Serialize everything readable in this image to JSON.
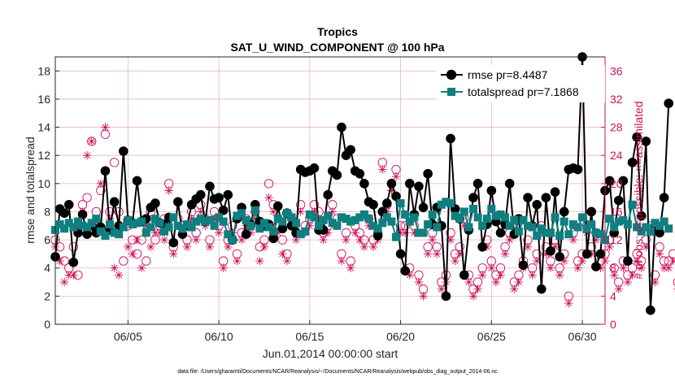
{
  "chart_data": {
    "type": "line",
    "title": "Tropics",
    "subtitle": "SAT_U_WIND_COMPONENT @ 100 hPa",
    "xlabel": "Jun.01,2014 00:00:00 start",
    "ylabel_left": "rmse and totalspread",
    "ylabel_right": "# of obs: o=possible; ×=assimilated",
    "footnote": "data file: /Users/gharamti/Documents/NCAR/Reanalysis/~/Documents/NCAR/Reanalysis/webpub/obs_diag_output_2014-06.nc",
    "x_start_day": 1.0,
    "x_step_days": 0.25,
    "xlim": [
      1.0,
      31.25
    ],
    "xticks": [
      5,
      10,
      15,
      20,
      25,
      30
    ],
    "xtick_labels": [
      "06/05",
      "06/10",
      "06/15",
      "06/20",
      "06/25",
      "06/30"
    ],
    "ylim_left": [
      0,
      19
    ],
    "yticks_left": [
      0,
      2,
      4,
      6,
      8,
      10,
      12,
      14,
      16,
      18
    ],
    "ylim_right": [
      0,
      38
    ],
    "yticks_right": [
      0,
      4,
      8,
      12,
      16,
      20,
      24,
      28,
      32,
      36
    ],
    "legend_position": "top-right",
    "series": [
      {
        "name": "rmse",
        "legend_label": "rmse pr=8.4487",
        "color": "#000000",
        "marker": "circle",
        "axis": "left",
        "values": [
          4.8,
          8.2,
          7.9,
          8.5,
          4.4,
          6.5,
          7.8,
          6.4,
          7.0,
          6.5,
          6.9,
          10.9,
          6.7,
          8.7,
          7.0,
          12.3,
          7.4,
          7.2,
          10.2,
          7.3,
          7.5,
          8.3,
          8.6,
          7.2,
          7.1,
          7.6,
          5.8,
          8.7,
          6.4,
          7.0,
          8.5,
          8.9,
          9.2,
          7.3,
          9.8,
          8.9,
          9.0,
          8.1,
          9.2,
          6.0,
          7.5,
          8.3,
          6.4,
          7.1,
          8.5,
          7.3,
          7.0,
          7.1,
          6.1,
          8.4,
          6.8,
          7.9,
          7.0,
          6.5,
          11.0,
          10.8,
          10.9,
          11.1,
          6.7,
          6.7,
          9.2,
          10.9,
          10.6,
          14.0,
          12.0,
          12.4,
          10.9,
          10.7,
          10.0,
          8.7,
          8.5,
          6.3,
          8.0,
          8.6,
          10.0,
          9.1,
          5.0,
          3.8,
          10.0,
          7.8,
          9.8,
          8.3,
          10.7,
          7.1,
          8.3,
          7.0,
          2.0,
          13.2,
          8.2,
          7.5,
          3.5,
          6.7,
          9.0,
          10.0,
          5.5,
          7.1,
          9.5,
          7.3,
          6.5,
          7.1,
          10.0,
          6.4,
          7.5,
          4.2,
          9.0,
          7.0,
          8.5,
          2.5,
          9.0,
          5.2,
          9.4,
          4.8,
          8.0,
          11.0,
          11.1,
          11.0,
          19.0,
          5.0,
          8.0,
          4.1,
          5.0,
          9.5,
          10.2,
          6.5,
          8.8,
          10.2,
          4.5,
          11.5,
          13.3,
          7.7,
          13.0,
          1.0,
          7.0,
          6.5,
          9.0,
          15.7
        ]
      },
      {
        "name": "totalspread",
        "legend_label": "totalspread pr=7.1868",
        "color": "#0f7f7f",
        "marker": "square",
        "axis": "left",
        "values": [
          6.7,
          7.1,
          6.8,
          7.2,
          6.9,
          7.3,
          7.0,
          6.9,
          7.2,
          7.5,
          6.6,
          6.3,
          7.1,
          6.5,
          6.4,
          6.9,
          7.4,
          7.1,
          7.2,
          7.3,
          6.5,
          6.9,
          7.5,
          7.2,
          6.6,
          6.9,
          7.6,
          7.0,
          6.8,
          7.1,
          6.9,
          7.3,
          7.5,
          7.3,
          7.4,
          7.0,
          7.6,
          7.3,
          6.4,
          6.0,
          7.7,
          7.9,
          7.4,
          7.0,
          8.1,
          6.8,
          7.2,
          6.9,
          6.6,
          7.5,
          7.3,
          7.9,
          7.6,
          7.2,
          6.4,
          6.6,
          7.8,
          7.6,
          7.0,
          7.4,
          7.7,
          7.2,
          7.0,
          7.6,
          7.5,
          7.3,
          7.4,
          7.6,
          7.8,
          7.5,
          7.0,
          6.8,
          7.2,
          7.6,
          7.3,
          6.2,
          8.6,
          7.8,
          7.3,
          7.6,
          6.5,
          6.5,
          7.1,
          7.8,
          6.9,
          8.5,
          8.7,
          8.6,
          7.7,
          7.5,
          8.0,
          6.9,
          8.2,
          7.6,
          7.0,
          7.5,
          8.2,
          7.7,
          7.8,
          7.6,
          7.0,
          7.4,
          6.6,
          7.4,
          7.0,
          6.9,
          6.3,
          6.8,
          6.5,
          6.5,
          7.6,
          6.3,
          7.3,
          6.4,
          7.1,
          6.9,
          7.6,
          6.8,
          7.1,
          6.5,
          6.4,
          6.0,
          7.5,
          6.9,
          7.3,
          7.4,
          7.1,
          8.5,
          6.9,
          6.6,
          6.9,
          6.6,
          7.2,
          7.0,
          7.3,
          6.8
        ]
      },
      {
        "name": "possible",
        "legend_label": "",
        "color": "#cc1155",
        "marker": "circle-open",
        "axis": "right",
        "values": [
          12.0,
          11.0,
          9.0,
          8.0,
          11.0,
          7.0,
          17.0,
          18.0,
          26.0,
          16.0,
          19.0,
          27.0,
          16.0,
          23.0,
          16.0,
          9.0,
          14.0,
          12.0,
          10.0,
          12.0,
          9.0,
          16.0,
          12.0,
          14.0,
          15.0,
          20.0,
          11.0,
          15.0,
          14.0,
          12.0,
          16.0,
          13.0,
          17.0,
          15.0,
          12.0,
          16.0,
          14.0,
          9.0,
          12.0,
          14.0,
          10.0,
          13.0,
          15.0,
          14.0,
          16.0,
          11.0,
          12.0,
          20.0,
          17.0,
          14.0,
          12.0,
          10.0,
          15.0,
          13.0,
          17.0,
          14.0,
          15.0,
          17.0,
          16.0,
          13.0,
          14.0,
          17.0,
          15.0,
          10.0,
          13.0,
          9.0,
          14.0,
          13.0,
          12.0,
          15.0,
          12.0,
          13.0,
          23.0,
          17.0,
          20.0,
          22.0,
          14.0,
          14.0,
          8.0,
          14.0,
          7.0,
          5.0,
          11.0,
          13.0,
          11.0,
          6.0,
          7.0,
          13.0,
          10.0,
          11.0,
          15.0,
          7.0,
          5.0,
          6.0,
          8.0,
          12.0,
          9.0,
          7.0,
          8.0,
          11.0,
          13.0,
          6.0,
          7.0,
          9.0,
          12.0,
          8.0,
          10.0,
          14.0,
          11.0,
          9.0,
          12.0,
          8.0,
          10.0,
          4.0,
          13.0,
          9.0,
          10.0,
          14.0,
          11.0,
          13.0,
          9.0,
          10.0,
          12.0,
          8.0,
          6.0,
          9.0,
          7.0,
          8.0,
          10.0,
          9.0,
          12.0,
          14.0,
          7.0,
          11.0,
          9.0,
          9.0,
          10.0,
          6.0,
          5.0
        ]
      },
      {
        "name": "assimilated",
        "legend_label": "",
        "color": "#cc1155",
        "marker": "asterisk",
        "axis": "right",
        "values": [
          11.0,
          9.0,
          6.0,
          7.0,
          7.0,
          14.0,
          16.0,
          24.0,
          26.0,
          14.0,
          20.0,
          28.0,
          15.0,
          8.0,
          7.0,
          14.0,
          11.0,
          10.0,
          12.0,
          8.0,
          14.0,
          11.0,
          13.0,
          13.0,
          12.0,
          19.0,
          10.0,
          14.0,
          13.0,
          11.0,
          15.0,
          12.0,
          16.0,
          14.0,
          11.0,
          15.0,
          13.0,
          8.0,
          11.0,
          13.0,
          9.0,
          12.0,
          14.0,
          13.0,
          15.0,
          9.0,
          11.0,
          18.0,
          16.0,
          13.0,
          10.0,
          9.0,
          14.0,
          12.0,
          16.0,
          13.0,
          14.0,
          16.0,
          15.0,
          12.0,
          13.0,
          16.0,
          14.0,
          9.0,
          12.0,
          8.0,
          13.0,
          12.0,
          11.0,
          14.0,
          11.0,
          12.0,
          22.0,
          16.0,
          19.0,
          21.0,
          13.0,
          13.0,
          7.0,
          13.0,
          6.0,
          4.0,
          10.0,
          12.0,
          10.0,
          5.0,
          6.0,
          12.0,
          9.0,
          10.0,
          14.0,
          6.0,
          4.0,
          5.0,
          7.0,
          11.0,
          8.0,
          6.0,
          7.0,
          10.0,
          12.0,
          5.0,
          6.0,
          8.0,
          11.0,
          7.0,
          9.0,
          13.0,
          10.0,
          8.0,
          11.0,
          7.0,
          9.0,
          3.0,
          12.0,
          8.0,
          9.0,
          13.0,
          10.0,
          12.0,
          8.0,
          9.0,
          11.0,
          7.0,
          5.0,
          8.0,
          6.0,
          7.0,
          9.0,
          8.0,
          11.0,
          13.0,
          6.0,
          10.0,
          8.0,
          8.0,
          9.0,
          5.0,
          4.0
        ]
      }
    ]
  },
  "colors": {
    "rmse": "#000000",
    "totalspread": "#0f7f7f",
    "obs": "#cc1155",
    "grid": "#e6b3c7",
    "axis": "#262626"
  }
}
